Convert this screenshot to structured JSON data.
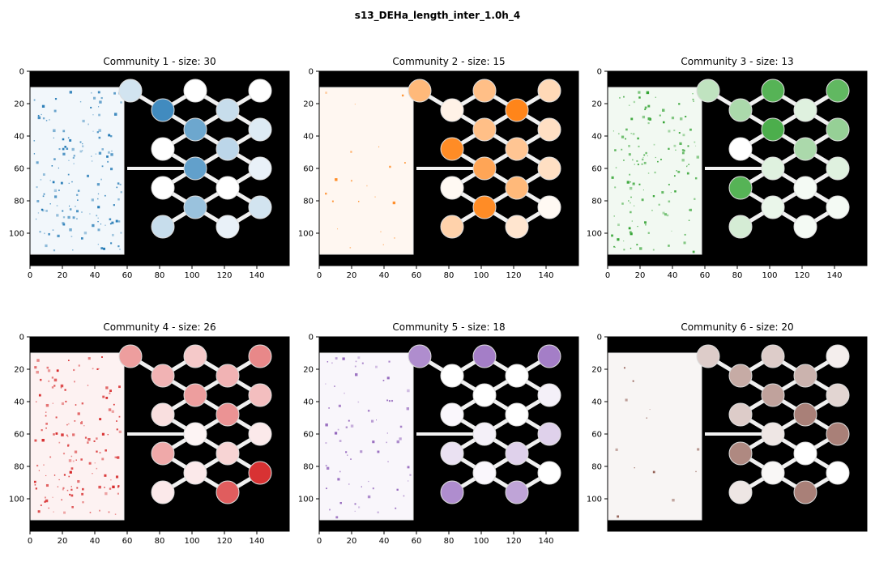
{
  "figure": {
    "title": "s13_DEHa_length_inter_1.0h_4"
  },
  "chart_data": [
    {
      "type": "heatmap",
      "title": "Community 1 - size: 30",
      "color": "#1f77b4",
      "xlim": [
        0,
        160
      ],
      "ylim": [
        120,
        0
      ],
      "xticks": [
        0,
        20,
        40,
        60,
        80,
        100,
        120,
        140
      ],
      "yticks": [
        0,
        20,
        40,
        60,
        80,
        100
      ],
      "show_xticks": true,
      "hex_fill": [
        0.85,
        0.25,
        0.65,
        0.15,
        0.0,
        0.3,
        0.7,
        0.1,
        0.0,
        0.0,
        0.45,
        0.2,
        0.25,
        0.1,
        0.0,
        0.0,
        0.2
      ]
    },
    {
      "type": "heatmap",
      "title": "Community 2 - size: 15",
      "color": "#ff7f0e",
      "xlim": [
        0,
        160
      ],
      "ylim": [
        120,
        0
      ],
      "xticks": [
        0,
        20,
        40,
        60,
        80,
        100,
        120,
        140
      ],
      "yticks": [
        0,
        20,
        40,
        60,
        80,
        100
      ],
      "show_xticks": true,
      "hex_fill": [
        0.1,
        0.95,
        0.5,
        0.25,
        0.9,
        0.45,
        0.7,
        0.25,
        0.05,
        0.55,
        0.9,
        0.05,
        0.35,
        0.2,
        0.5,
        0.3,
        0.55
      ]
    },
    {
      "type": "heatmap",
      "title": "Community 3 - size: 13",
      "color": "#2ca02c",
      "xlim": [
        0,
        160
      ],
      "ylim": [
        120,
        0
      ],
      "xticks": [
        0,
        20,
        40,
        60,
        80,
        100,
        120,
        140
      ],
      "yticks": [
        0,
        20,
        40,
        60,
        80,
        100
      ],
      "show_xticks": true,
      "hex_fill": [
        0.4,
        0.15,
        0.85,
        0.5,
        0.0,
        0.4,
        0.15,
        0.15,
        0.8,
        0.05,
        0.1,
        0.05,
        0.2,
        0.05,
        0.8,
        0.75,
        0.3
      ]
    },
    {
      "type": "heatmap",
      "title": "Community 4 - size: 26",
      "color": "#d62728",
      "xlim": [
        0,
        160
      ],
      "ylim": [
        120,
        0
      ],
      "xticks": [
        0,
        20,
        40,
        60,
        80,
        100,
        120,
        140
      ],
      "yticks": [
        0,
        20,
        40,
        60,
        80,
        100
      ],
      "show_xticks": true,
      "hex_fill": [
        0.35,
        0.35,
        0.45,
        0.3,
        0.15,
        0.5,
        0.05,
        0.1,
        0.4,
        0.2,
        0.1,
        0.95,
        0.1,
        0.75,
        0.25,
        0.55,
        0.45
      ]
    },
    {
      "type": "heatmap",
      "title": "Community 5 - size: 18",
      "color": "#9467bd",
      "xlim": [
        0,
        160
      ],
      "ylim": [
        120,
        0
      ],
      "xticks": [
        0,
        20,
        40,
        60,
        80,
        100,
        120,
        140
      ],
      "yticks": [
        0,
        20,
        40,
        60,
        80,
        100
      ],
      "show_xticks": true,
      "hex_fill": [
        0.0,
        0.0,
        0.0,
        0.1,
        0.05,
        0.0,
        0.1,
        0.3,
        0.2,
        0.3,
        0.05,
        0.0,
        0.75,
        0.6,
        0.85,
        0.85,
        0.75
      ]
    },
    {
      "type": "heatmap",
      "title": "Community 6 - size: 20",
      "color": "#8c564b",
      "xlim": [
        0,
        160
      ],
      "ylim": [
        120,
        0
      ],
      "xticks": [],
      "yticks": [
        0,
        20,
        40,
        60,
        80,
        100
      ],
      "show_xticks": false,
      "hex_fill": [
        0.5,
        0.45,
        0.55,
        0.25,
        0.3,
        0.75,
        0.15,
        0.75,
        0.7,
        0.0,
        0.05,
        0.0,
        0.15,
        0.75,
        0.3,
        0.1,
        0.3
      ]
    }
  ]
}
